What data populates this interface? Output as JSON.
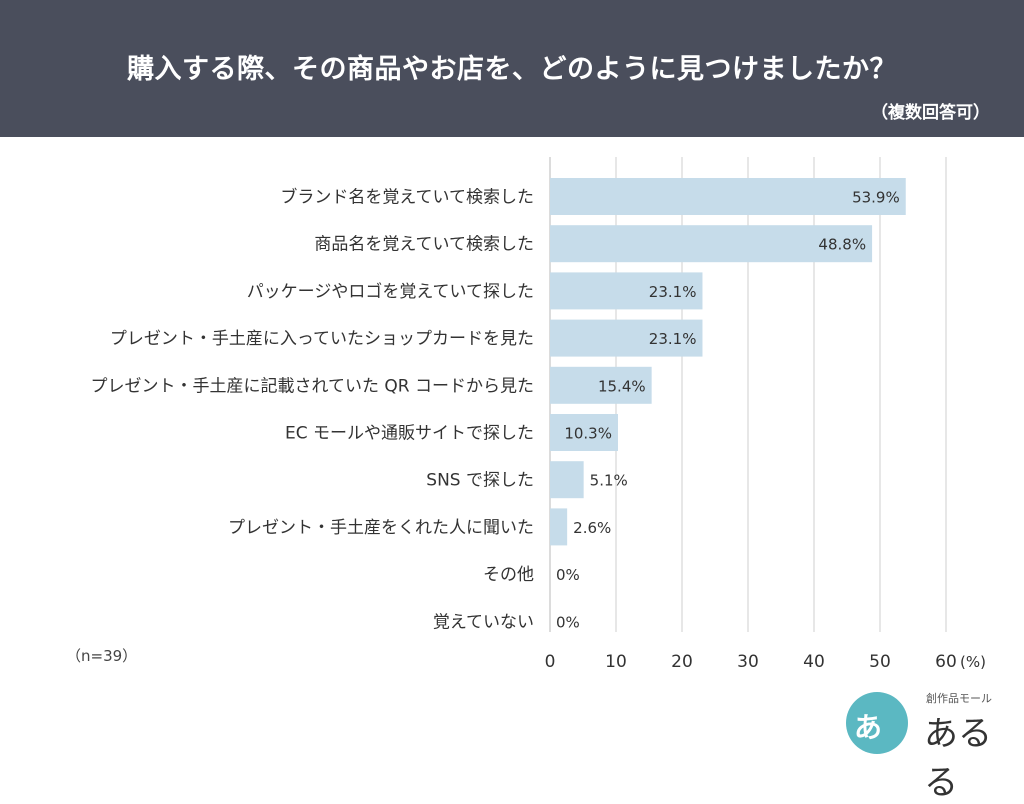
{
  "header": {
    "title": "購入する際、その商品やお店を、どのように見つけましたか？",
    "subtitle": "（複数回答可）"
  },
  "note": "（n=39）",
  "logo": {
    "small_text": "創作品モール",
    "main_text": "あるる",
    "circle_glyph": "あ"
  },
  "colors": {
    "header_bg": "#4a4e5c",
    "bar": "#c6dcea",
    "grid": "#cfcfcf",
    "text": "#333333",
    "logo_circle": "#5bb8c2"
  },
  "chart_data": {
    "type": "bar",
    "orientation": "horizontal",
    "categories": [
      "ブランド名を覚えていて検索した",
      "商品名を覚えていて検索した",
      "パッケージやロゴを覚えていて探した",
      "プレゼント・手土産に入っていたショップカードを見た",
      "プレゼント・手土産に記載されていた QR コードから見た",
      "EC モールや通販サイトで探した",
      "SNS で探した",
      "プレゼント・手土産をくれた人に聞いた",
      "その他",
      "覚えていない"
    ],
    "values": [
      53.9,
      48.8,
      23.1,
      23.1,
      15.4,
      10.3,
      5.1,
      2.6,
      0,
      0
    ],
    "value_labels": [
      "53.9%",
      "48.8%",
      "23.1%",
      "23.1%",
      "15.4%",
      "10.3%",
      "5.1%",
      "2.6%",
      "0%",
      "0%"
    ],
    "xticks": [
      0,
      10,
      20,
      30,
      40,
      50,
      60
    ],
    "xtick_labels": [
      "0",
      "10",
      "20",
      "30",
      "40",
      "50",
      "60"
    ],
    "xunit": "(%)",
    "xlim": [
      0,
      60
    ],
    "grid": true
  }
}
